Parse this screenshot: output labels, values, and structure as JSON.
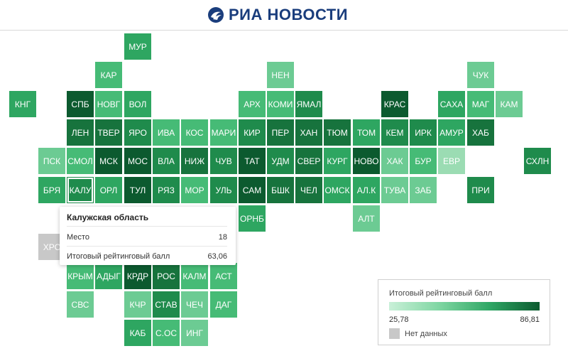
{
  "header": {
    "logo_text": "РИА НОВОСТИ"
  },
  "colors": {
    "c1": "#0c5a2f",
    "c2": "#17733d",
    "c3": "#1f8b4c",
    "c4": "#2ea661",
    "c5": "#46bb76",
    "c6": "#6ccb93",
    "c7": "#9bdcb3",
    "nd": "#c8c8c8"
  },
  "tiles": [
    {
      "label": "МУР",
      "level": "c4"
    },
    {
      "label": "КАР",
      "level": "c5"
    },
    {
      "label": "НЕН",
      "level": "c6"
    },
    {
      "label": "ЧУК",
      "level": "c6"
    },
    {
      "label": "КНГ",
      "level": "c4"
    },
    {
      "label": "СПБ",
      "level": "c1"
    },
    {
      "label": "НОВГ",
      "level": "c5"
    },
    {
      "label": "ВОЛ",
      "level": "c4"
    },
    {
      "label": "АРХ",
      "level": "c5"
    },
    {
      "label": "КОМИ",
      "level": "c5"
    },
    {
      "label": "ЯМАЛ",
      "level": "c3"
    },
    {
      "label": "КРАС",
      "level": "c1"
    },
    {
      "label": "САХА",
      "level": "c4"
    },
    {
      "label": "МАГ",
      "level": "c5"
    },
    {
      "label": "КАМ",
      "level": "c6"
    },
    {
      "label": "ЛЕН",
      "level": "c2"
    },
    {
      "label": "ТВЕР",
      "level": "c2"
    },
    {
      "label": "ЯРО",
      "level": "c3"
    },
    {
      "label": "ИВА",
      "level": "c5"
    },
    {
      "label": "КОС",
      "level": "c5"
    },
    {
      "label": "МАРИ",
      "level": "c5"
    },
    {
      "label": "КИР",
      "level": "c3"
    },
    {
      "label": "ПЕР",
      "level": "c2"
    },
    {
      "label": "ХАН",
      "level": "c2"
    },
    {
      "label": "ТЮМ",
      "level": "c2"
    },
    {
      "label": "ТОМ",
      "level": "c4"
    },
    {
      "label": "КЕМ",
      "level": "c3"
    },
    {
      "label": "ИРК",
      "level": "c3"
    },
    {
      "label": "АМУР",
      "level": "c4"
    },
    {
      "label": "ХАБ",
      "level": "c2"
    },
    {
      "label": "ПСК",
      "level": "c6"
    },
    {
      "label": "СМОЛ",
      "level": "c5"
    },
    {
      "label": "МСК",
      "level": "c1"
    },
    {
      "label": "МОС",
      "level": "c1"
    },
    {
      "label": "ВЛА",
      "level": "c3"
    },
    {
      "label": "НИЖ",
      "level": "c2"
    },
    {
      "label": "ЧУВ",
      "level": "c3"
    },
    {
      "label": "ТАТ",
      "level": "c1"
    },
    {
      "label": "УДМ",
      "level": "c3"
    },
    {
      "label": "СВЕР",
      "level": "c2"
    },
    {
      "label": "КУРГ",
      "level": "c4"
    },
    {
      "label": "НОВО",
      "level": "c1"
    },
    {
      "label": "ХАК",
      "level": "c6"
    },
    {
      "label": "БУР",
      "level": "c5"
    },
    {
      "label": "ЕВР",
      "level": "c7"
    },
    {
      "label": "СХЛН",
      "level": "c3"
    },
    {
      "label": "БРЯ",
      "level": "c4"
    },
    {
      "label": "КАЛУ",
      "level": "c3",
      "active": true
    },
    {
      "label": "ОРЛ",
      "level": "c4"
    },
    {
      "label": "ТУЛ",
      "level": "c1"
    },
    {
      "label": "РЯЗ",
      "level": "c3"
    },
    {
      "label": "МОР",
      "level": "c5"
    },
    {
      "label": "УЛЬ",
      "level": "c3"
    },
    {
      "label": "САМ",
      "level": "c1"
    },
    {
      "label": "БШК",
      "level": "c2"
    },
    {
      "label": "ЧЕЛ",
      "level": "c2"
    },
    {
      "label": "ОМСК",
      "level": "c4"
    },
    {
      "label": "АЛ.К",
      "level": "c4"
    },
    {
      "label": "ТУВА",
      "level": "c6"
    },
    {
      "label": "ЗАБ",
      "level": "c6"
    },
    {
      "label": "ПРИ",
      "level": "c3"
    },
    {
      "label": "ОРНБ",
      "level": "c4"
    },
    {
      "label": "АЛТ",
      "level": "c6"
    },
    {
      "label": "ХРС",
      "level": "nd"
    },
    {
      "label": "КРЫМ",
      "level": "c5"
    },
    {
      "label": "АДЫГ",
      "level": "c4"
    },
    {
      "label": "КРДР",
      "level": "c1"
    },
    {
      "label": "РОС",
      "level": "c2"
    },
    {
      "label": "КАЛМ",
      "level": "c5"
    },
    {
      "label": "АСТ",
      "level": "c5"
    },
    {
      "label": "СВС",
      "level": "c6"
    },
    {
      "label": "КЧР",
      "level": "c6"
    },
    {
      "label": "СТАВ",
      "level": "c3"
    },
    {
      "label": "ЧЕЧ",
      "level": "c6"
    },
    {
      "label": "ДАГ",
      "level": "c5"
    },
    {
      "label": "КАБ",
      "level": "c4"
    },
    {
      "label": "С.ОС",
      "level": "c5"
    },
    {
      "label": "ИНГ",
      "level": "c6"
    }
  ],
  "tooltip": {
    "title": "Калужская область",
    "place_label": "Место",
    "place_value": "18",
    "score_label": "Итоговый рейтинговый балл",
    "score_value": "63,06"
  },
  "legend": {
    "title": "Итоговый рейтинговый балл",
    "min": "25,78",
    "max": "86,81",
    "no_data": "Нет данных"
  }
}
